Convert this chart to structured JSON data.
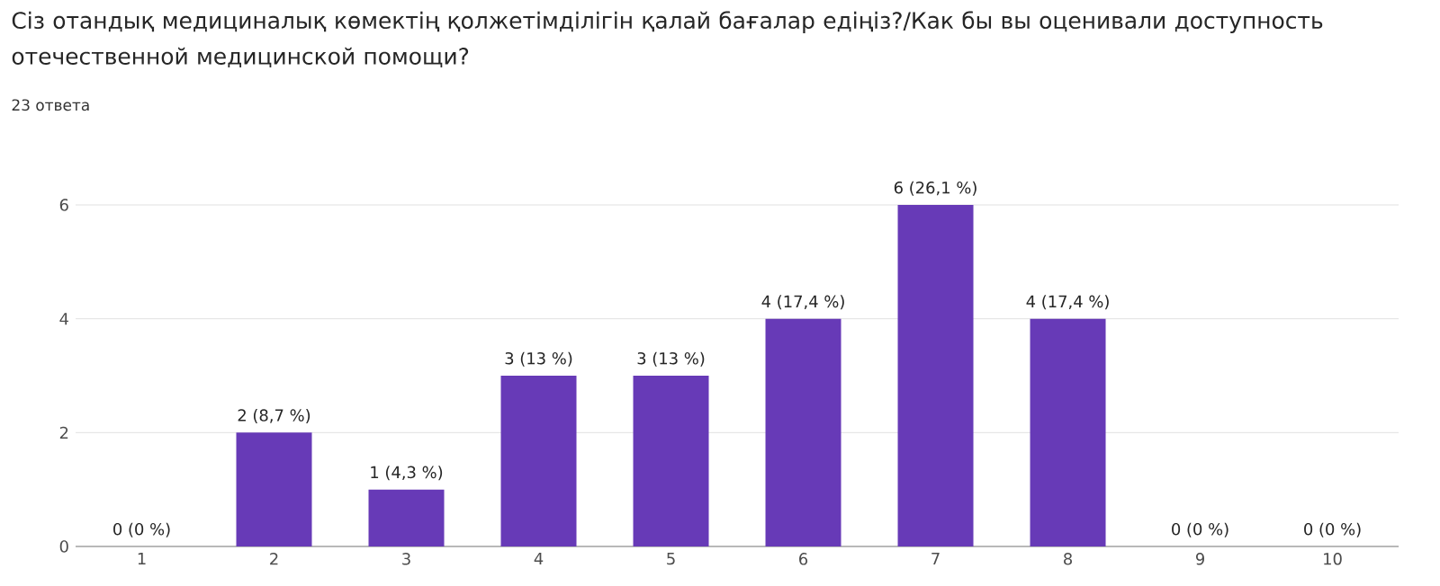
{
  "chart_data": {
    "type": "bar",
    "title": "Сіз отандық медициналық көмектің қолжетімділігін қалай бағалар едіңіз?/Как бы вы оценивали доступность отечественной медицинской помощи?",
    "subtitle": "23 ответа",
    "categories": [
      "1",
      "2",
      "3",
      "4",
      "5",
      "6",
      "7",
      "8",
      "9",
      "10"
    ],
    "values": [
      0,
      2,
      1,
      3,
      3,
      4,
      6,
      4,
      0,
      0
    ],
    "value_labels": [
      "0 (0 %)",
      "2 (8,7 %)",
      "1 (4,3 %)",
      "3 (13 %)",
      "3 (13 %)",
      "4 (17,4 %)",
      "6 (26,1 %)",
      "4 (17,4 %)",
      "0 (0 %)",
      "0 (0 %)"
    ],
    "color": "#673ab7",
    "ylim": [
      0,
      6
    ],
    "yticks": [
      0,
      2,
      4,
      6
    ],
    "grid": "y"
  }
}
